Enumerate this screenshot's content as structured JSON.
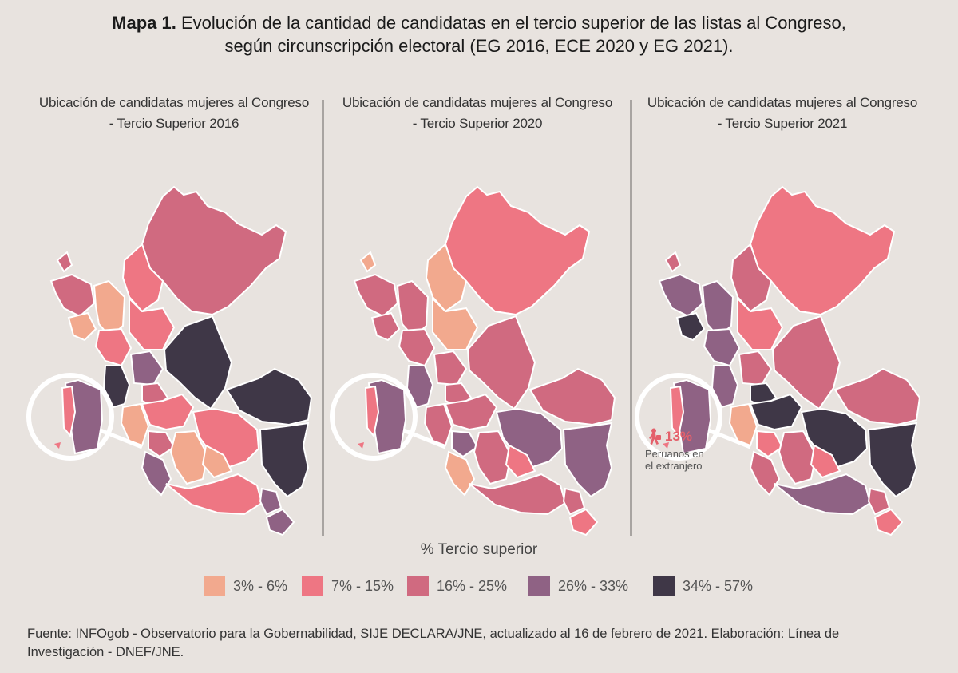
{
  "title": {
    "prefix": "Mapa 1.",
    "text": "Evolución de la cantidad de candidatas en el tercio superior de las listas al Congreso,",
    "line2": "según circunscripción electoral (EG 2016, ECE 2020 y EG 2021)."
  },
  "panels": [
    {
      "line1": "Ubicación de candidatas mujeres al Congreso",
      "line2": "- Tercio Superior 2016"
    },
    {
      "line1": "Ubicación de candidatas mujeres al Congreso",
      "line2": "- Tercio Superior 2020"
    },
    {
      "line1": "Ubicación de candidatas mujeres al Congreso",
      "line2": "- Tercio Superior 2021"
    }
  ],
  "abroad": {
    "value": "13%",
    "line1": "Peruanos en",
    "line2": "el extranjero"
  },
  "legend": {
    "title": "% Tercio superior",
    "items": [
      {
        "label": "3% - 6%",
        "color": "#f2a98e"
      },
      {
        "label": "7% - 15%",
        "color": "#ee7683"
      },
      {
        "label": "16% - 25%",
        "color": "#d06a80"
      },
      {
        "label": "26% - 33%",
        "color": "#8f6284"
      },
      {
        "label": "34% - 57%",
        "color": "#3f3747"
      }
    ]
  },
  "footer": {
    "line1": "Fuente: INFOgob - Observatorio para la Gobernabilidad, SIJE DECLARA/JNE, actualizado al 16 de febrero de 2021. Elaboración: Línea de",
    "line2": "Investigación - DNEF/JNE."
  }
}
